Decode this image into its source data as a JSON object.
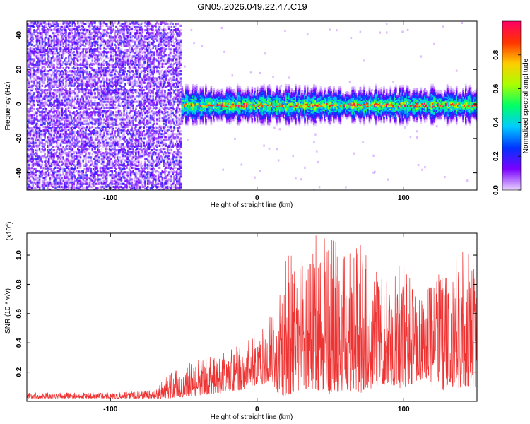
{
  "title": "GN05.2026.049.22.47.C19",
  "chart_data": [
    {
      "type": "heatmap",
      "xlabel": "Height of straight line (km)",
      "ylabel": "Frequency (Hz)",
      "xlim": [
        -157,
        150
      ],
      "ylim": [
        -50,
        48
      ],
      "x_ticks": [
        -100,
        0,
        100
      ],
      "y_ticks": [
        -40,
        -20,
        0,
        20,
        40
      ],
      "grid": false,
      "noise_region_x": [
        -157,
        -52
      ],
      "signal_band_hz": [
        -5,
        5
      ],
      "colorbar": {
        "label": "Normalized spectral amplitude",
        "range": [
          0,
          1
        ],
        "ticks": [
          0.0,
          0.2,
          0.4,
          0.6,
          0.8
        ],
        "colormap": [
          "#e8d4ff",
          "#7b00ff",
          "#0033ff",
          "#00ccff",
          "#00ff66",
          "#aaff00",
          "#ffcc00",
          "#ff3300",
          "#ff0066"
        ]
      }
    },
    {
      "type": "line",
      "xlabel": "Height of straight line (km)",
      "ylabel": "SNR (10 * v/v)",
      "y_multiplier_label": "(x10",
      "y_multiplier_exp": "4",
      "y_multiplier_close": ")",
      "xlim": [
        -157,
        150
      ],
      "ylim": [
        0,
        1.15
      ],
      "x_ticks": [
        -100,
        0,
        100
      ],
      "y_ticks": [
        0.2,
        0.4,
        0.6,
        0.8,
        1.0
      ],
      "y_tick_labels": [
        "0.2",
        "0.4",
        "0.6",
        "0.8",
        "1.0"
      ],
      "line_color": "#ee3333",
      "grid": false,
      "envelope": {
        "x": [
          -157,
          -130,
          -100,
          -80,
          -70,
          -60,
          -50,
          -40,
          -30,
          -20,
          -10,
          -5,
          0,
          5,
          10,
          15,
          20,
          30,
          40,
          50,
          60,
          70,
          80,
          90,
          100,
          110,
          120,
          130,
          140,
          150
        ],
        "low": [
          0.02,
          0.02,
          0.02,
          0.02,
          0.02,
          0.02,
          0.03,
          0.04,
          0.05,
          0.06,
          0.08,
          0.1,
          0.1,
          0.12,
          0.15,
          0.02,
          0.04,
          0.08,
          0.08,
          0.05,
          0.08,
          0.05,
          0.1,
          0.12,
          0.08,
          0.15,
          0.1,
          0.06,
          0.1,
          0.1
        ],
        "high": [
          0.06,
          0.06,
          0.06,
          0.07,
          0.08,
          0.2,
          0.24,
          0.3,
          0.32,
          0.34,
          0.4,
          0.45,
          0.5,
          0.55,
          0.6,
          0.75,
          1.05,
          0.95,
          1.15,
          1.15,
          1.0,
          1.1,
          0.9,
          0.85,
          1.0,
          0.75,
          0.8,
          1.0,
          1.05,
          0.95
        ]
      }
    }
  ]
}
